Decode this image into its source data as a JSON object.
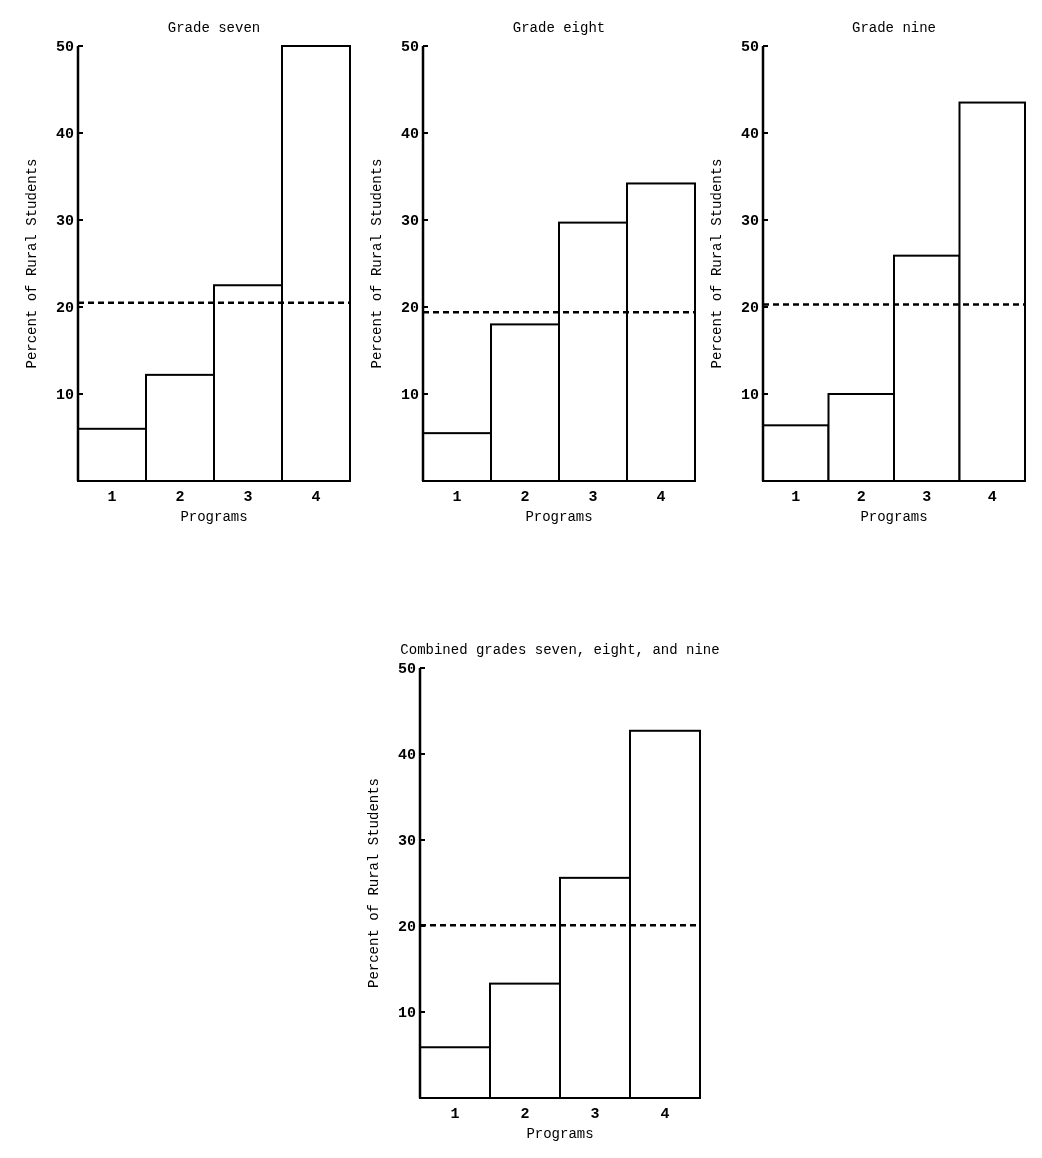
{
  "chart_data": [
    {
      "type": "bar",
      "title": "Grade seven",
      "xlabel": "Programs",
      "ylabel": "Percent of Rural Students",
      "categories": [
        "1",
        "2",
        "3",
        "4"
      ],
      "values": [
        6,
        12.2,
        22.5,
        50
      ],
      "color": "#ffffff",
      "ylim": [
        0,
        50
      ],
      "yticks": [
        10,
        20,
        30,
        40,
        50
      ],
      "ref_lines": [
        {
          "axis": "y",
          "value": 20.5,
          "line_style": "dashed",
          "color": "#000000"
        }
      ]
    },
    {
      "type": "bar",
      "title": "Grade eight",
      "xlabel": "Programs",
      "ylabel": "Percent of Rural Students",
      "categories": [
        "1",
        "2",
        "3",
        "4"
      ],
      "values": [
        5.5,
        18,
        29.7,
        34.2
      ],
      "color": "#ffffff",
      "ylim": [
        0,
        50
      ],
      "yticks": [
        10,
        20,
        30,
        40,
        50
      ],
      "ref_lines": [
        {
          "axis": "y",
          "value": 19.4,
          "line_style": "dashed",
          "color": "#000000"
        }
      ]
    },
    {
      "type": "bar",
      "title": "Grade nine",
      "xlabel": "Programs",
      "ylabel": "Percent of Rural Students",
      "categories": [
        "1",
        "2",
        "3",
        "4"
      ],
      "values": [
        6.4,
        10,
        25.9,
        43.5
      ],
      "color": "#ffffff",
      "ylim": [
        0,
        50
      ],
      "yticks": [
        10,
        20,
        30,
        40,
        50
      ],
      "ref_lines": [
        {
          "axis": "y",
          "value": 20.3,
          "line_style": "dashed",
          "color": "#000000"
        }
      ]
    },
    {
      "type": "bar",
      "title": "Combined grades seven, eight, and nine",
      "xlabel": "Programs",
      "ylabel": "Percent of Rural Students",
      "categories": [
        "1",
        "2",
        "3",
        "4"
      ],
      "values": [
        5.9,
        13.3,
        25.6,
        42.7
      ],
      "color": "#ffffff",
      "ylim": [
        0,
        50
      ],
      "yticks": [
        10,
        20,
        30,
        40,
        50
      ],
      "ref_lines": [
        {
          "axis": "y",
          "value": 20.1,
          "line_style": "dashed",
          "color": "#000000"
        }
      ]
    }
  ]
}
